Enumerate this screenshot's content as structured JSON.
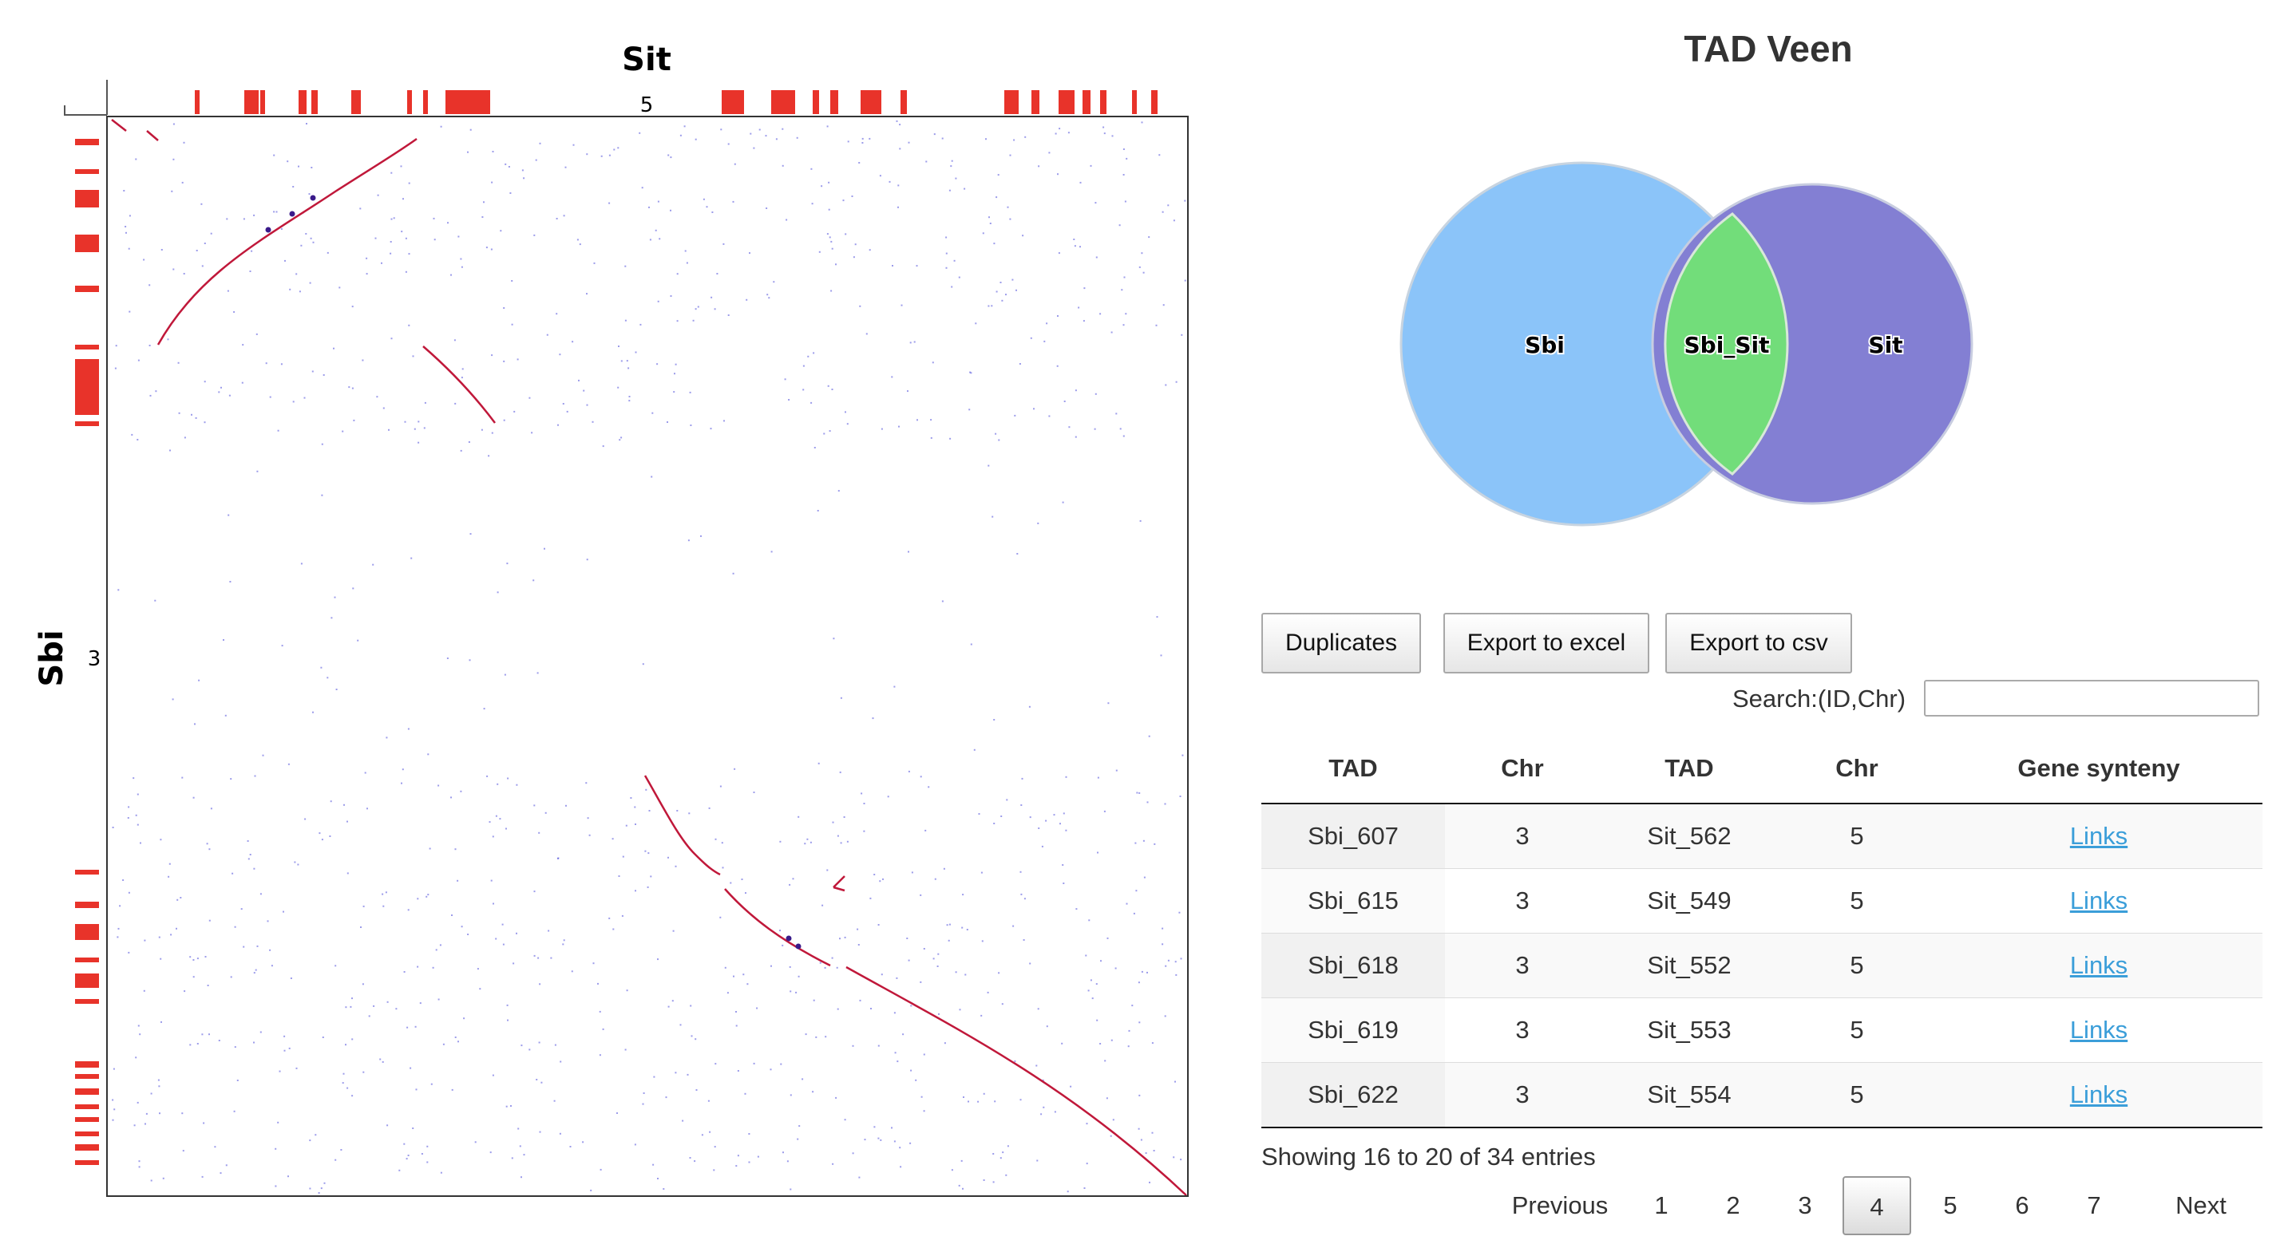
{
  "dotplot": {
    "x_genome": "Sit",
    "y_genome": "Sbi",
    "x_chr": "5",
    "y_chr": "3",
    "colors": {
      "tad_bar": "#e8332a",
      "synteny": "#c0183a",
      "noise": "#4a4ad8",
      "frame": "#333333"
    }
  },
  "venn": {
    "title": "TAD Veen",
    "sets": [
      {
        "label": "Sbi",
        "color": "#8bc4f9"
      },
      {
        "label": "Sit",
        "color": "#837fd3"
      }
    ],
    "intersection": {
      "label": "Sbi_Sit",
      "color": "#72dd7a"
    }
  },
  "toolbar": {
    "duplicates_label": "Duplicates",
    "excel_label": "Export to excel",
    "csv_label": "Export to csv"
  },
  "search": {
    "label": "Search:(ID,Chr)",
    "value": ""
  },
  "table": {
    "headers": [
      "TAD",
      "Chr",
      "TAD",
      "Chr",
      "Gene synteny"
    ],
    "rows": [
      {
        "tad1": "Sbi_607",
        "chr1": "3",
        "tad2": "Sit_562",
        "chr2": "5",
        "link": "Links"
      },
      {
        "tad1": "Sbi_615",
        "chr1": "3",
        "tad2": "Sit_549",
        "chr2": "5",
        "link": "Links"
      },
      {
        "tad1": "Sbi_618",
        "chr1": "3",
        "tad2": "Sit_552",
        "chr2": "5",
        "link": "Links"
      },
      {
        "tad1": "Sbi_619",
        "chr1": "3",
        "tad2": "Sit_553",
        "chr2": "5",
        "link": "Links"
      },
      {
        "tad1": "Sbi_622",
        "chr1": "3",
        "tad2": "Sit_554",
        "chr2": "5",
        "link": "Links"
      }
    ],
    "info": "Showing 16 to 20 of 34 entries"
  },
  "pagination": {
    "previous": "Previous",
    "pages": [
      "1",
      "2",
      "3",
      "4",
      "5",
      "6",
      "7"
    ],
    "current": "4",
    "next": "Next"
  }
}
